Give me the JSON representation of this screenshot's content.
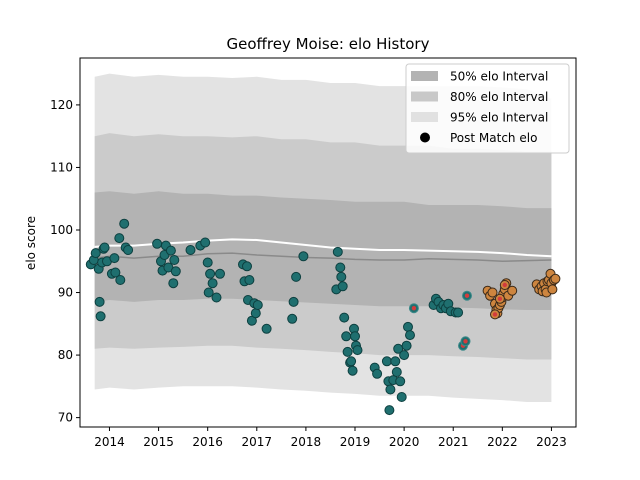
{
  "chart_data": {
    "type": "scatter",
    "title": "Geoffrey Moise: elo History",
    "xlabel": "",
    "ylabel": "elo score",
    "xlim": [
      2013.4,
      2023.5
    ],
    "ylim": [
      68.5,
      127.5
    ],
    "x_ticks": [
      2014,
      2015,
      2016,
      2017,
      2018,
      2019,
      2020,
      2021,
      2022,
      2023
    ],
    "y_ticks": [
      70,
      80,
      90,
      100,
      110,
      120
    ],
    "grid": false,
    "legend_position": "top-right",
    "legend": [
      {
        "label": "50% elo Interval",
        "kind": "band",
        "color": "#b3b3b3"
      },
      {
        "label": "80% elo Interval",
        "kind": "band",
        "color": "#c8c8c8"
      },
      {
        "label": "95% elo Interval",
        "kind": "band",
        "color": "#e1e1e1"
      },
      {
        "label": "Post Match elo",
        "kind": "marker",
        "color": "#000000"
      }
    ],
    "colors": {
      "band_50": "#b3b3b3",
      "band_80": "#cbcbcb",
      "band_95": "#e3e3e3",
      "median_line": "#8a8a8a",
      "mean_line": "#ffffff",
      "teal_marker": "#1f6f6f",
      "teal_edge": "#0d3f3f",
      "orange_marker": "#cd853f",
      "orange_edge": "#3a2a1a",
      "red_center": "#d23c3c"
    },
    "bands": {
      "x": [
        2013.7,
        2014.0,
        2014.5,
        2015.0,
        2015.5,
        2016.0,
        2016.5,
        2017.0,
        2017.5,
        2018.0,
        2018.5,
        2019.0,
        2019.5,
        2020.0,
        2020.5,
        2021.0,
        2021.5,
        2022.0,
        2022.5,
        2023.0
      ],
      "p95_upper": [
        124.5,
        125.0,
        124.5,
        124.8,
        124.5,
        124.5,
        124.3,
        124.5,
        124.0,
        124.0,
        123.5,
        123.5,
        123.0,
        123.0,
        123.0,
        123.0,
        123.0,
        122.8,
        122.5,
        121.0
      ],
      "p80_upper": [
        115.0,
        115.5,
        115.0,
        115.3,
        115.0,
        115.0,
        114.8,
        115.0,
        114.5,
        114.5,
        114.0,
        114.0,
        113.5,
        113.5,
        113.5,
        113.0,
        113.0,
        112.8,
        112.5,
        112.5
      ],
      "p50_upper": [
        106.0,
        106.2,
        105.8,
        106.2,
        105.8,
        105.8,
        105.5,
        105.5,
        105.2,
        105.0,
        104.8,
        104.5,
        104.5,
        104.5,
        104.0,
        104.0,
        104.0,
        103.8,
        103.5,
        103.5
      ],
      "median": [
        95.5,
        95.8,
        95.5,
        95.8,
        95.8,
        96.2,
        96.3,
        96.0,
        95.8,
        95.6,
        95.5,
        95.3,
        95.2,
        95.2,
        95.4,
        95.3,
        95.2,
        95.0,
        95.1,
        95.2
      ],
      "mean": [
        97.3,
        97.5,
        97.5,
        97.8,
        98.0,
        98.3,
        98.5,
        98.4,
        98.0,
        97.6,
        97.2,
        97.0,
        96.8,
        96.8,
        96.7,
        96.6,
        96.5,
        96.3,
        96.0,
        95.8
      ],
      "p50_lower": [
        88.5,
        88.8,
        88.5,
        88.8,
        88.8,
        89.0,
        89.0,
        88.8,
        88.6,
        88.4,
        88.2,
        88.0,
        87.8,
        87.8,
        87.8,
        87.6,
        87.5,
        87.3,
        87.2,
        87.2
      ],
      "p80_lower": [
        81.0,
        81.2,
        81.0,
        81.2,
        81.3,
        81.5,
        81.5,
        81.2,
        81.0,
        80.8,
        80.5,
        80.3,
        80.0,
        80.0,
        80.0,
        79.8,
        79.7,
        79.5,
        79.3,
        79.3
      ],
      "p95_lower": [
        74.5,
        74.8,
        74.5,
        74.8,
        75.0,
        75.0,
        75.0,
        74.8,
        74.5,
        74.3,
        74.0,
        73.8,
        73.5,
        73.5,
        73.5,
        73.2,
        73.0,
        72.8,
        72.5,
        72.5
      ]
    },
    "series": [
      {
        "name": "Post Match elo",
        "group": "teal",
        "x": [
          2013.62,
          2013.68,
          2013.72,
          2013.78,
          2013.8,
          2013.82,
          2013.85,
          2013.88,
          2013.9,
          2013.95,
          2014.05,
          2014.1,
          2014.12,
          2014.2,
          2014.22,
          2014.3,
          2014.33,
          2014.38,
          2014.97,
          2015.05,
          2015.08,
          2015.12,
          2015.15,
          2015.2,
          2015.25,
          2015.3,
          2015.32,
          2015.35,
          2015.65,
          2015.85,
          2015.95,
          2016.0,
          2016.02,
          2016.05,
          2016.1,
          2016.18,
          2016.25,
          2016.72,
          2016.75,
          2016.8,
          2016.82,
          2016.85,
          2016.9,
          2016.95,
          2016.98,
          2017.02,
          2017.2,
          2017.72,
          2017.75,
          2017.8,
          2017.95,
          2018.62,
          2018.65,
          2018.7,
          2018.72,
          2018.75,
          2018.78,
          2018.82,
          2018.85,
          2018.9,
          2018.92,
          2018.95,
          2018.98,
          2019.0,
          2019.02,
          2019.05,
          2019.4,
          2019.45,
          2019.65,
          2019.68,
          2019.7,
          2019.72,
          2019.78,
          2019.82,
          2019.85,
          2019.88,
          2019.92,
          2019.95,
          2020.0,
          2020.05,
          2020.08,
          2020.12,
          2020.6,
          2020.65,
          2020.7,
          2020.75,
          2020.8,
          2020.85,
          2020.9,
          2020.95,
          2021.05,
          2021.1
        ],
        "y": [
          94.5,
          95.2,
          96.3,
          93.8,
          88.5,
          86.2,
          94.8,
          97.0,
          97.2,
          95.0,
          93.0,
          95.5,
          93.2,
          98.7,
          92.0,
          101.0,
          97.2,
          96.8,
          97.8,
          95.0,
          93.5,
          96.0,
          97.5,
          94.0,
          96.7,
          91.5,
          95.2,
          93.4,
          96.8,
          97.5,
          98.0,
          94.8,
          90.0,
          93.0,
          91.5,
          89.2,
          93.0,
          94.5,
          91.8,
          94.2,
          88.8,
          92.0,
          85.5,
          88.3,
          86.7,
          88.0,
          84.2,
          85.8,
          88.5,
          92.5,
          95.8,
          90.5,
          96.5,
          94.0,
          92.5,
          91.0,
          86.0,
          83.0,
          80.5,
          78.8,
          79.0,
          77.5,
          84.2,
          83.0,
          81.5,
          80.8,
          78.0,
          77.0,
          79.0,
          75.8,
          71.2,
          74.5,
          76.0,
          79.0,
          77.3,
          81.0,
          75.8,
          73.3,
          80.0,
          81.5,
          84.5,
          83.2,
          88.0,
          89.0,
          88.5,
          87.5,
          88.0,
          87.5,
          88.2,
          87.0,
          86.8,
          86.8
        ]
      },
      {
        "name": "Post Match elo",
        "group": "teal-red",
        "x": [
          2020.2,
          2021.2,
          2021.25,
          2021.28
        ],
        "y": [
          87.5,
          81.5,
          82.2,
          89.5
        ]
      },
      {
        "name": "Post Match elo",
        "group": "orange",
        "x": [
          2021.7,
          2021.75,
          2021.8,
          2021.85,
          2021.88,
          2021.9,
          2021.92,
          2021.95,
          2021.98,
          2022.0,
          2022.02,
          2022.05,
          2022.08,
          2022.12,
          2022.2,
          2022.7,
          2022.75,
          2022.8,
          2022.82,
          2022.85,
          2022.88,
          2022.9,
          2022.92,
          2022.95,
          2022.98,
          2023.0,
          2023.02,
          2023.05,
          2023.08
        ],
        "y": [
          90.3,
          89.5,
          90.0,
          88.2,
          87.2,
          86.7,
          87.5,
          88.0,
          88.5,
          89.2,
          89.8,
          90.5,
          91.5,
          89.5,
          90.3,
          91.3,
          90.5,
          91.0,
          90.2,
          91.5,
          90.5,
          90.0,
          91.8,
          92.0,
          93.0,
          91.5,
          90.5,
          92.0,
          92.2
        ]
      },
      {
        "name": "Post Match elo",
        "group": "orange-red",
        "x": [
          2021.85,
          2021.95,
          2022.05
        ],
        "y": [
          86.5,
          89.0,
          91.2
        ]
      }
    ]
  }
}
